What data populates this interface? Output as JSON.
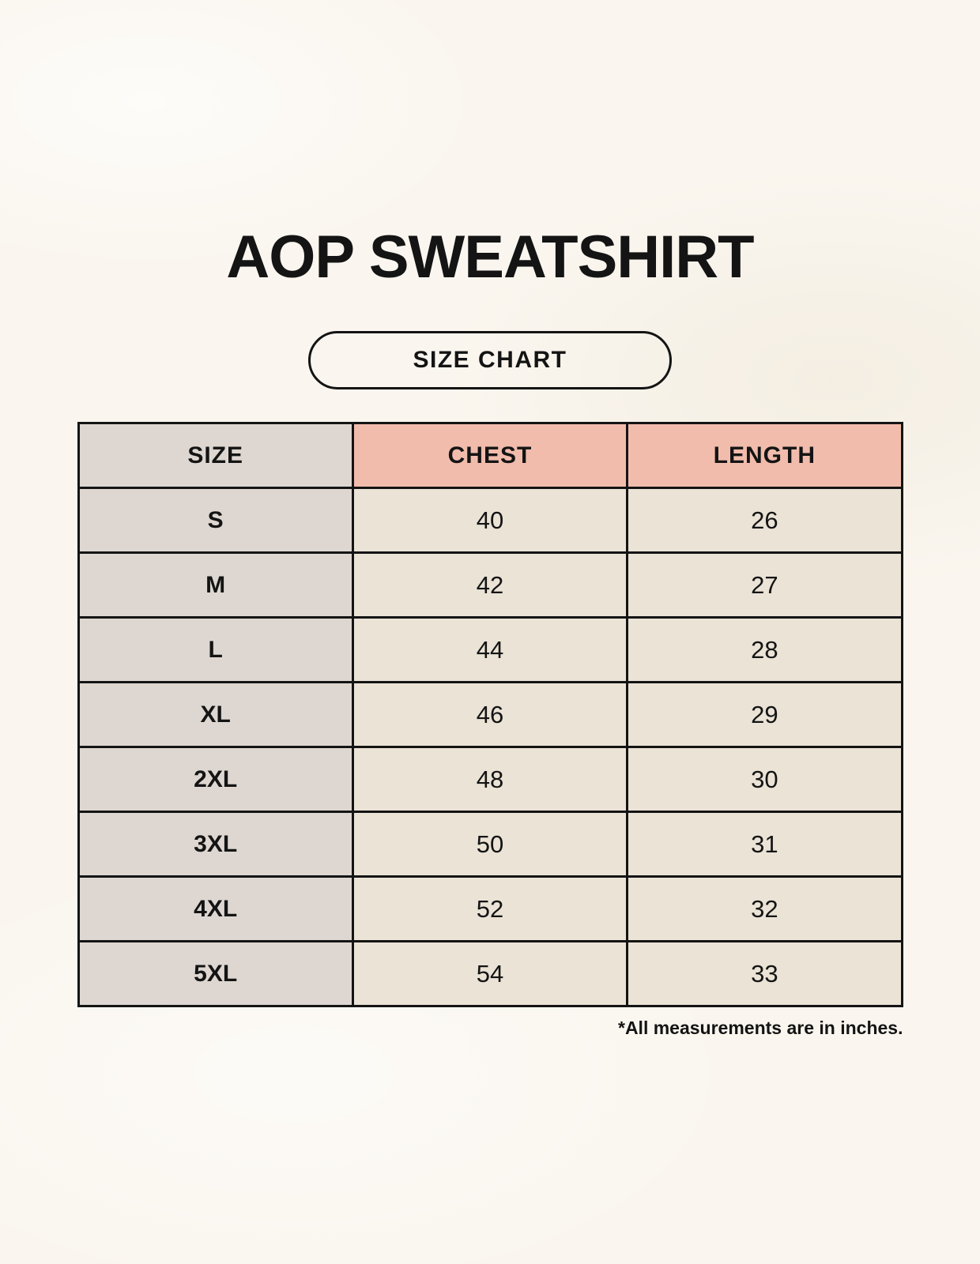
{
  "page": {
    "title": "AOP SWEATSHIRT",
    "badge_label": "SIZE CHART",
    "footnote": "*All measurements are in inches."
  },
  "colors": {
    "background": "#FAF6EF",
    "size_column_bg": "#DED7D1",
    "header_accent_bg": "#F1BCAC",
    "cell_bg": "#EAE3D6",
    "border": "#141414",
    "text": "#141414"
  },
  "chart_data": {
    "type": "table",
    "title": "AOP SWEATSHIRT — SIZE CHART",
    "columns": [
      "SIZE",
      "CHEST",
      "LENGTH"
    ],
    "rows": [
      [
        "S",
        "40",
        "26"
      ],
      [
        "M",
        "42",
        "27"
      ],
      [
        "L",
        "44",
        "28"
      ],
      [
        "XL",
        "46",
        "29"
      ],
      [
        "2XL",
        "48",
        "30"
      ],
      [
        "3XL",
        "50",
        "31"
      ],
      [
        "4XL",
        "52",
        "32"
      ],
      [
        "5XL",
        "54",
        "33"
      ]
    ],
    "units": "inches",
    "note": "*All measurements are in inches."
  }
}
